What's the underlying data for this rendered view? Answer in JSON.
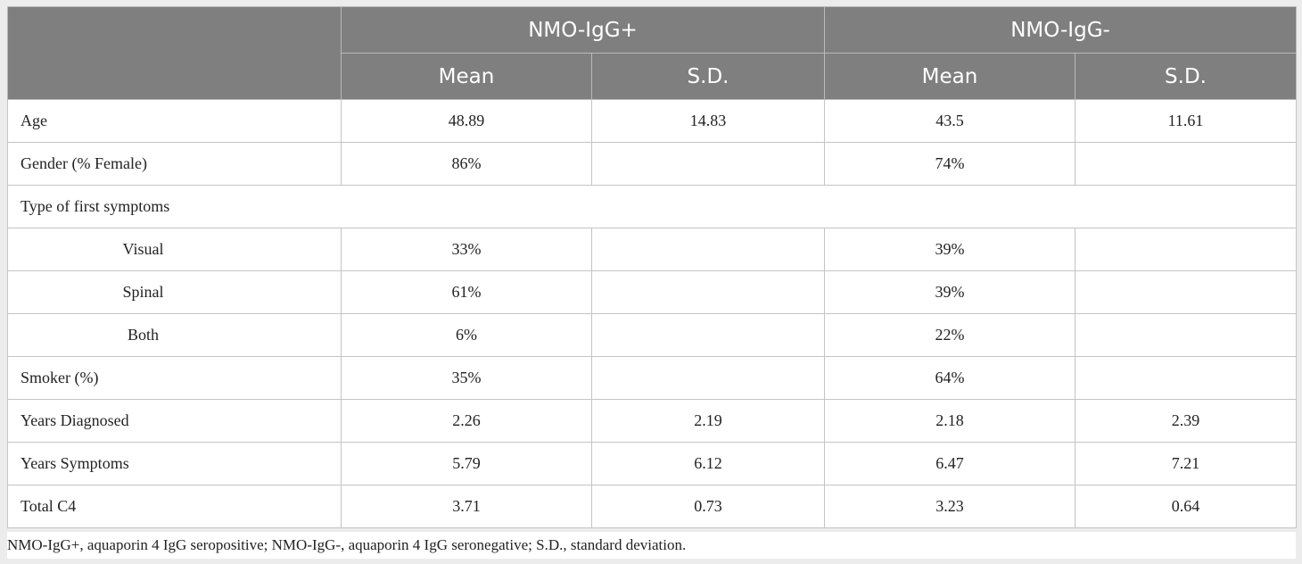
{
  "header": {
    "groups": [
      "NMO-IgG+",
      "NMO-IgG-"
    ],
    "subheaders": [
      "Mean",
      "S.D.",
      "Mean",
      "S.D."
    ]
  },
  "rows": [
    {
      "label": "Age",
      "cells": [
        "48.89",
        "14.83",
        "43.5",
        "11.61"
      ]
    },
    {
      "label": "Gender (% Female)",
      "cells": [
        "86%",
        "",
        "74%",
        ""
      ]
    },
    {
      "label": "Type of first symptoms",
      "cells": [
        "",
        "",
        "",
        ""
      ]
    },
    {
      "label": "Visual",
      "cells": [
        "33%",
        "",
        "39%",
        ""
      ]
    },
    {
      "label": "Spinal",
      "cells": [
        "61%",
        "",
        "39%",
        ""
      ]
    },
    {
      "label": "Both",
      "cells": [
        "6%",
        "",
        "22%",
        ""
      ]
    },
    {
      "label": "Smoker (%)",
      "cells": [
        "35%",
        "",
        "64%",
        ""
      ]
    },
    {
      "label": "Years Diagnosed",
      "cells": [
        "2.26",
        "2.19",
        "2.18",
        "2.39"
      ]
    },
    {
      "label": "Years Symptoms",
      "cells": [
        "5.79",
        "6.12",
        "6.47",
        "7.21"
      ]
    },
    {
      "label": "Total C4",
      "cells": [
        "3.71",
        "0.73",
        "3.23",
        "0.64"
      ]
    }
  ],
  "footnote": "NMO-IgG+, aquaporin 4 IgG seropositive; NMO-IgG-, aquaporin 4 IgG seronegative; S.D., standard deviation."
}
